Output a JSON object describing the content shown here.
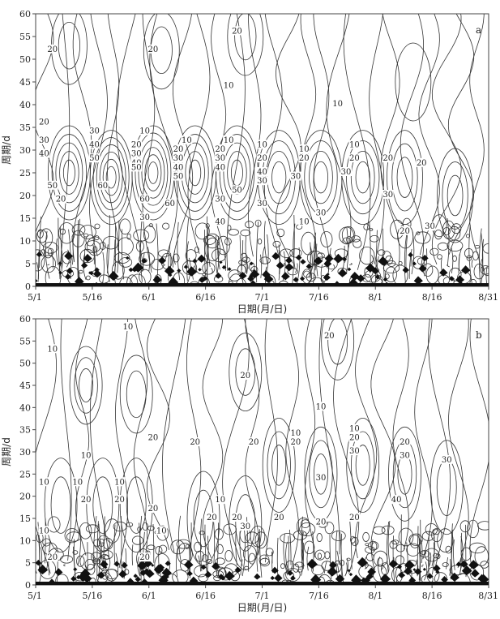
{
  "chart_data": [
    {
      "type": "contour",
      "panel": "a",
      "xlabel": "日期(月/日)",
      "ylabel": "周期/d",
      "xticks": [
        "5/1",
        "5/16",
        "6/1",
        "6/16",
        "7/1",
        "7/16",
        "8/1",
        "8/16",
        "8/31"
      ],
      "ylim": [
        0,
        60
      ],
      "yticks": [
        0,
        5,
        10,
        15,
        20,
        25,
        30,
        35,
        40,
        45,
        50,
        55,
        60
      ],
      "contour_labels": [
        {
          "x": 2,
          "y": 52,
          "value": "20"
        },
        {
          "x": 14,
          "y": 52,
          "value": "20"
        },
        {
          "x": 24,
          "y": 56,
          "value": "20"
        },
        {
          "x": 23,
          "y": 44,
          "value": "10"
        },
        {
          "x": 36,
          "y": 40,
          "value": "10"
        },
        {
          "x": 1,
          "y": 36,
          "value": "20"
        },
        {
          "x": 1,
          "y": 32,
          "value": "30"
        },
        {
          "x": 1,
          "y": 29,
          "value": "40"
        },
        {
          "x": 2,
          "y": 22,
          "value": "50"
        },
        {
          "x": 3,
          "y": 19,
          "value": "20"
        },
        {
          "x": 7,
          "y": 34,
          "value": "30"
        },
        {
          "x": 7,
          "y": 31,
          "value": "40"
        },
        {
          "x": 7,
          "y": 28,
          "value": "50"
        },
        {
          "x": 8,
          "y": 22,
          "value": "60"
        },
        {
          "x": 13,
          "y": 34,
          "value": "10"
        },
        {
          "x": 12,
          "y": 31,
          "value": "20"
        },
        {
          "x": 12,
          "y": 29,
          "value": "30"
        },
        {
          "x": 12,
          "y": 27,
          "value": "40"
        },
        {
          "x": 12,
          "y": 26,
          "value": "50"
        },
        {
          "x": 13,
          "y": 19,
          "value": "60"
        },
        {
          "x": 13,
          "y": 15,
          "value": "30"
        },
        {
          "x": 18,
          "y": 32,
          "value": "10"
        },
        {
          "x": 17,
          "y": 30,
          "value": "20"
        },
        {
          "x": 17,
          "y": 28,
          "value": "30"
        },
        {
          "x": 17,
          "y": 26,
          "value": "40"
        },
        {
          "x": 17,
          "y": 24,
          "value": "50"
        },
        {
          "x": 16,
          "y": 18,
          "value": "60"
        },
        {
          "x": 23,
          "y": 32,
          "value": "10"
        },
        {
          "x": 22,
          "y": 30,
          "value": "20"
        },
        {
          "x": 22,
          "y": 28,
          "value": "30"
        },
        {
          "x": 22,
          "y": 26,
          "value": "40"
        },
        {
          "x": 24,
          "y": 21,
          "value": "50"
        },
        {
          "x": 22,
          "y": 19,
          "value": "30"
        },
        {
          "x": 22,
          "y": 14,
          "value": "40"
        },
        {
          "x": 27,
          "y": 31,
          "value": "10"
        },
        {
          "x": 27,
          "y": 28,
          "value": "20"
        },
        {
          "x": 27,
          "y": 25,
          "value": "40"
        },
        {
          "x": 27,
          "y": 23,
          "value": "30"
        },
        {
          "x": 27,
          "y": 18,
          "value": "30"
        },
        {
          "x": 32,
          "y": 30,
          "value": "10"
        },
        {
          "x": 32,
          "y": 28,
          "value": "20"
        },
        {
          "x": 31,
          "y": 24,
          "value": "30"
        },
        {
          "x": 32,
          "y": 14,
          "value": "10"
        },
        {
          "x": 34,
          "y": 16,
          "value": "30"
        },
        {
          "x": 38,
          "y": 31,
          "value": "10"
        },
        {
          "x": 38,
          "y": 28,
          "value": "20"
        },
        {
          "x": 37,
          "y": 25,
          "value": "30"
        },
        {
          "x": 42,
          "y": 28,
          "value": "20"
        },
        {
          "x": 42,
          "y": 20,
          "value": "30"
        },
        {
          "x": 46,
          "y": 27,
          "value": "20"
        },
        {
          "x": 44,
          "y": 12,
          "value": "20"
        },
        {
          "x": 47,
          "y": 13,
          "value": "30"
        }
      ]
    },
    {
      "type": "contour",
      "panel": "b",
      "xlabel": "日期(月/日)",
      "ylabel": "周期/d",
      "xticks": [
        "5/1",
        "5/16",
        "6/1",
        "6/16",
        "7/1",
        "7/16",
        "8/1",
        "8/16",
        "8/31"
      ],
      "ylim": [
        0,
        60
      ],
      "yticks": [
        0,
        5,
        10,
        15,
        20,
        25,
        30,
        35,
        40,
        45,
        50,
        55,
        60
      ],
      "contour_labels": [
        {
          "x": 2,
          "y": 53,
          "value": "10"
        },
        {
          "x": 11,
          "y": 58,
          "value": "10"
        },
        {
          "x": 6,
          "y": 29,
          "value": "10"
        },
        {
          "x": 14,
          "y": 33,
          "value": "20"
        },
        {
          "x": 19,
          "y": 32,
          "value": "20"
        },
        {
          "x": 25,
          "y": 47,
          "value": "20"
        },
        {
          "x": 35,
          "y": 56,
          "value": "20"
        },
        {
          "x": 34,
          "y": 40,
          "value": "10"
        },
        {
          "x": 26,
          "y": 32,
          "value": "20"
        },
        {
          "x": 31,
          "y": 34,
          "value": "10"
        },
        {
          "x": 31,
          "y": 32,
          "value": "20"
        },
        {
          "x": 34,
          "y": 24,
          "value": "30"
        },
        {
          "x": 38,
          "y": 35,
          "value": "10"
        },
        {
          "x": 38,
          "y": 33,
          "value": "20"
        },
        {
          "x": 38,
          "y": 30,
          "value": "30"
        },
        {
          "x": 44,
          "y": 32,
          "value": "20"
        },
        {
          "x": 44,
          "y": 29,
          "value": "30"
        },
        {
          "x": 43,
          "y": 19,
          "value": "40"
        },
        {
          "x": 49,
          "y": 28,
          "value": "30"
        },
        {
          "x": 1,
          "y": 23,
          "value": "10"
        },
        {
          "x": 5,
          "y": 23,
          "value": "10"
        },
        {
          "x": 6,
          "y": 19,
          "value": "20"
        },
        {
          "x": 10,
          "y": 23,
          "value": "10"
        },
        {
          "x": 10,
          "y": 19,
          "value": "20"
        },
        {
          "x": 14,
          "y": 17,
          "value": "20"
        },
        {
          "x": 15,
          "y": 12,
          "value": "10"
        },
        {
          "x": 22,
          "y": 19,
          "value": "10"
        },
        {
          "x": 21,
          "y": 15,
          "value": "20"
        },
        {
          "x": 24,
          "y": 15,
          "value": "20"
        },
        {
          "x": 25,
          "y": 13,
          "value": "30"
        },
        {
          "x": 29,
          "y": 15,
          "value": "20"
        },
        {
          "x": 34,
          "y": 14,
          "value": "20"
        },
        {
          "x": 38,
          "y": 15,
          "value": "20"
        },
        {
          "x": 1,
          "y": 12,
          "value": "10"
        },
        {
          "x": 2,
          "y": 6,
          "value": "20"
        },
        {
          "x": 13,
          "y": 6,
          "value": "20"
        }
      ]
    }
  ]
}
